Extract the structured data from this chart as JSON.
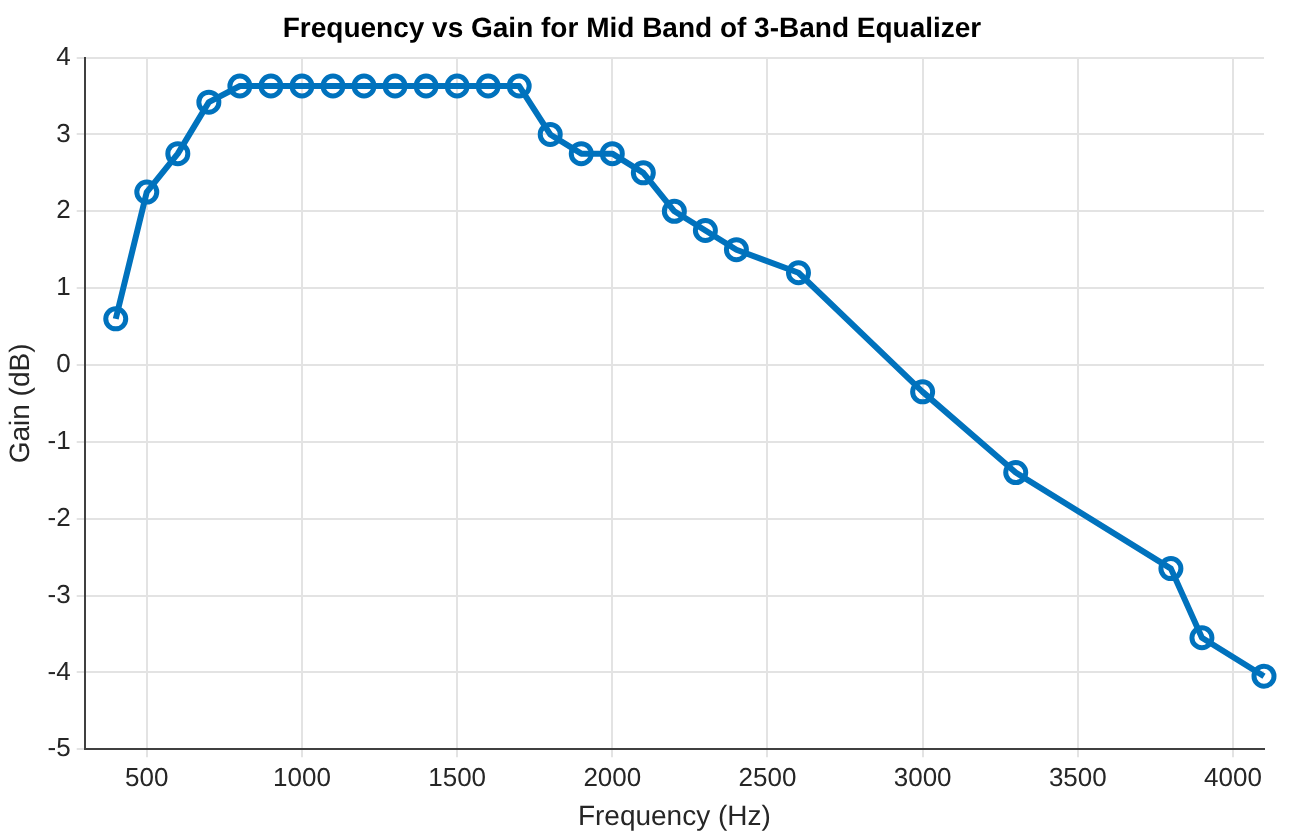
{
  "chart_data": {
    "type": "line",
    "title": "Frequency vs Gain for Mid Band of 3-Band Equalizer",
    "xlabel": "Frequency (Hz)",
    "ylabel": "Gain (dB)",
    "x": [
      400,
      500,
      600,
      700,
      800,
      900,
      1000,
      1100,
      1200,
      1300,
      1400,
      1500,
      1600,
      1700,
      1800,
      1900,
      2000,
      2100,
      2200,
      2300,
      2400,
      2600,
      3000,
      3300,
      3800,
      3900,
      4100
    ],
    "series": [
      {
        "color": "#0072bd",
        "values": [
          0.6,
          2.25,
          2.75,
          3.42,
          3.63,
          3.63,
          3.63,
          3.63,
          3.63,
          3.63,
          3.63,
          3.63,
          3.63,
          3.63,
          3.0,
          2.75,
          2.75,
          2.5,
          2.0,
          1.75,
          1.5,
          1.2,
          -0.35,
          -1.4,
          -2.65,
          -3.55,
          -4.05
        ]
      }
    ],
    "xlim": [
      300,
      4100
    ],
    "xticks": [
      500,
      1000,
      1500,
      2000,
      2500,
      3000,
      3500,
      4000
    ],
    "ylim": [
      -5,
      4
    ],
    "yticks": [
      -5,
      -4,
      -3,
      -2,
      -1,
      0,
      1,
      2,
      3,
      4
    ],
    "grid": true,
    "legend": false,
    "marker": "circle",
    "line_style": "solid"
  }
}
